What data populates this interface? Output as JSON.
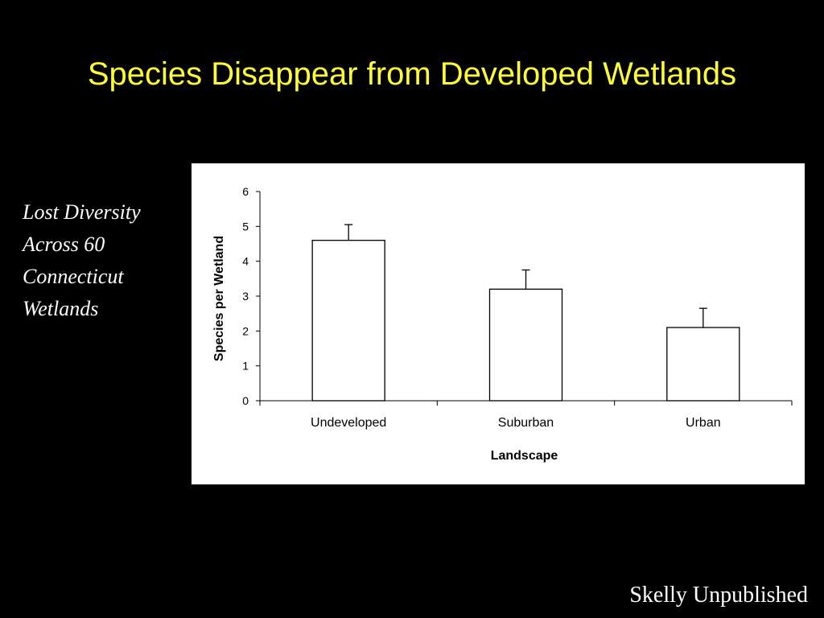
{
  "slide": {
    "title": "Species Disappear from Developed Wetlands",
    "caption_lines": [
      "Lost Diversity",
      "Across 60",
      "Connecticut",
      "Wetlands"
    ],
    "credit": "Skelly Unpublished"
  },
  "colors": {
    "background": "#000000",
    "title": "#ffff33",
    "body_text": "#ffffff",
    "chart_background": "#ffffff",
    "bar_fill": "#ffffff",
    "bar_stroke": "#000000",
    "axis": "#000000"
  },
  "chart_data": {
    "type": "bar",
    "categories": [
      "Undeveloped",
      "Suburban",
      "Urban"
    ],
    "values": [
      4.6,
      3.2,
      2.1
    ],
    "error_upper": [
      0.45,
      0.55,
      0.55
    ],
    "xlabel": "Landscape",
    "ylabel": "Species per Wetland",
    "ylim": [
      0,
      6
    ],
    "yticks": [
      0,
      1,
      2,
      3,
      4,
      5,
      6
    ],
    "grid": false,
    "legend": "none"
  }
}
